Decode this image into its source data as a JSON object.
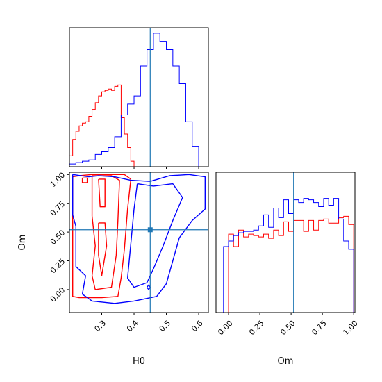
{
  "chart_data": {
    "type": "corner",
    "parameters": [
      "H0",
      "Om"
    ],
    "truths": {
      "H0": 0.45,
      "Om": 0.52
    },
    "colors": {
      "series_a": "#ff0000",
      "series_b": "#0000ff",
      "truth": "#1f77b4"
    },
    "panels": [
      {
        "id": "hist_H0",
        "type": "histogram_step",
        "xlim": [
          0.2,
          0.63
        ],
        "series": [
          {
            "color": "#ff0000",
            "bin_edges": [
              0.2,
              0.21,
              0.22,
              0.23,
              0.24,
              0.25,
              0.26,
              0.27,
              0.28,
              0.29,
              0.3,
              0.31,
              0.32,
              0.33,
              0.34,
              0.35,
              0.36,
              0.37,
              0.38,
              0.39,
              0.4
            ],
            "counts": [
              0.08,
              0.2,
              0.26,
              0.3,
              0.32,
              0.33,
              0.37,
              0.42,
              0.47,
              0.52,
              0.55,
              0.56,
              0.57,
              0.56,
              0.59,
              0.6,
              0.36,
              0.24,
              0.14,
              0.04
            ]
          },
          {
            "color": "#0000ff",
            "bin_edges": [
              0.2,
              0.22,
              0.24,
              0.26,
              0.28,
              0.3,
              0.32,
              0.34,
              0.36,
              0.38,
              0.4,
              0.42,
              0.44,
              0.46,
              0.48,
              0.5,
              0.52,
              0.54,
              0.56,
              0.58,
              0.6
            ],
            "counts": [
              0.02,
              0.03,
              0.04,
              0.05,
              0.09,
              0.11,
              0.14,
              0.22,
              0.38,
              0.46,
              0.52,
              0.74,
              0.86,
              0.98,
              0.92,
              0.86,
              0.74,
              0.61,
              0.33,
              0.15
            ]
          }
        ]
      },
      {
        "id": "hist_Om",
        "type": "histogram_step",
        "xlim": [
          -0.1,
          1.01
        ],
        "xticks": [
          "0.00",
          "0.25",
          "0.50",
          "0.75",
          "1.00"
        ],
        "xlabel": "Om",
        "series": [
          {
            "color": "#ff0000",
            "bin_edges": [
              0,
              0.04,
              0.08,
              0.12,
              0.16,
              0.2,
              0.24,
              0.28,
              0.32,
              0.36,
              0.4,
              0.44,
              0.48,
              0.52,
              0.56,
              0.6,
              0.64,
              0.68,
              0.72,
              0.76,
              0.8,
              0.84,
              0.88,
              0.92,
              0.96,
              1.0
            ],
            "counts": [
              0.57,
              0.48,
              0.6,
              0.55,
              0.57,
              0.56,
              0.55,
              0.57,
              0.54,
              0.6,
              0.56,
              0.66,
              0.59,
              0.67,
              0.67,
              0.59,
              0.67,
              0.6,
              0.67,
              0.68,
              0.65,
              0.65,
              0.69,
              0.7,
              0.64
            ]
          },
          {
            "color": "#0000ff",
            "bin_edges": [
              -0.08,
              -0.04,
              0,
              0.04,
              0.08,
              0.12,
              0.16,
              0.2,
              0.24,
              0.28,
              0.32,
              0.36,
              0.4,
              0.44,
              0.48,
              0.52,
              0.56,
              0.6,
              0.64,
              0.68,
              0.72,
              0.76,
              0.8,
              0.84,
              0.88,
              0.92,
              0.96,
              1.0
            ],
            "counts": [
              0,
              0.48,
              0.52,
              0.56,
              0.58,
              0.59,
              0.59,
              0.6,
              0.63,
              0.71,
              0.62,
              0.76,
              0.69,
              0.82,
              0.72,
              0.82,
              0.8,
              0.83,
              0.82,
              0.8,
              0.77,
              0.83,
              0.78,
              0.83,
              0.68,
              0.52,
              0.46
            ]
          }
        ]
      },
      {
        "id": "contour_H0_Om",
        "type": "contour",
        "xlim": [
          0.2,
          0.63
        ],
        "ylim": [
          -0.2,
          1.02
        ],
        "xticks": [
          "0.3",
          "0.4",
          "0.5",
          "0.6"
        ],
        "yticks": [
          "0.00",
          "0.25",
          "0.50",
          "0.75",
          "1.00"
        ],
        "xlabel": "H0",
        "ylabel": "Om",
        "series": [
          {
            "color": "#ff0000",
            "contours": [
              [
                [
                  0.21,
                  0.98
                ],
                [
                  0.23,
                  0.99
                ],
                [
                  0.27,
                  1.0
                ],
                [
                  0.33,
                  1.0
                ],
                [
                  0.37,
                  1.0
                ],
                [
                  0.39,
                  0.96
                ],
                [
                  0.38,
                  0.7
                ],
                [
                  0.37,
                  0.35
                ],
                [
                  0.36,
                  0.1
                ],
                [
                  0.35,
                  -0.06
                ],
                [
                  0.3,
                  -0.07
                ],
                [
                  0.23,
                  -0.07
                ],
                [
                  0.21,
                  -0.06
                ],
                [
                  0.21,
                  0.25
                ],
                [
                  0.21,
                  0.6
                ],
                [
                  0.21,
                  0.98
                ]
              ],
              [
                [
                  0.27,
                  0.99
                ],
                [
                  0.33,
                  0.99
                ],
                [
                  0.355,
                  0.95
                ],
                [
                  0.35,
                  0.6
                ],
                [
                  0.345,
                  0.3
                ],
                [
                  0.33,
                  0.02
                ],
                [
                  0.28,
                  0.0
                ],
                [
                  0.27,
                  0.12
                ],
                [
                  0.28,
                  0.38
                ],
                [
                  0.27,
                  0.64
                ],
                [
                  0.27,
                  0.99
                ]
              ],
              [
                [
                  0.29,
                  0.96
                ],
                [
                  0.31,
                  0.96
                ],
                [
                  0.31,
                  0.72
                ],
                [
                  0.295,
                  0.72
                ],
                [
                  0.29,
                  0.96
                ]
              ],
              [
                [
                  0.29,
                  0.58
                ],
                [
                  0.31,
                  0.58
                ],
                [
                  0.315,
                  0.38
                ],
                [
                  0.3,
                  0.12
                ],
                [
                  0.29,
                  0.3
                ],
                [
                  0.29,
                  0.58
                ]
              ],
              [
                [
                  0.24,
                  0.97
                ],
                [
                  0.255,
                  0.97
                ],
                [
                  0.255,
                  0.93
                ],
                [
                  0.24,
                  0.93
                ],
                [
                  0.24,
                  0.97
                ]
              ]
            ]
          },
          {
            "color": "#0000ff",
            "contours": [
              [
                [
                  0.21,
                  1.0
                ],
                [
                  0.26,
                  0.98
                ],
                [
                  0.29,
                  0.99
                ],
                [
                  0.34,
                  0.98
                ],
                [
                  0.39,
                  0.95
                ],
                [
                  0.45,
                  0.94
                ],
                [
                  0.51,
                  0.99
                ],
                [
                  0.57,
                  1.0
                ],
                [
                  0.62,
                  0.98
                ],
                [
                  0.62,
                  0.7
                ],
                [
                  0.58,
                  0.6
                ],
                [
                  0.54,
                  0.45
                ],
                [
                  0.52,
                  0.25
                ],
                [
                  0.5,
                  0.05
                ],
                [
                  0.47,
                  -0.06
                ],
                [
                  0.4,
                  -0.1
                ],
                [
                  0.34,
                  -0.12
                ],
                [
                  0.27,
                  -0.1
                ],
                [
                  0.24,
                  -0.04
                ],
                [
                  0.25,
                  0.12
                ],
                [
                  0.22,
                  0.2
                ],
                [
                  0.22,
                  0.55
                ],
                [
                  0.21,
                  0.65
                ],
                [
                  0.21,
                  1.0
                ]
              ],
              [
                [
                  0.41,
                  0.92
                ],
                [
                  0.46,
                  0.9
                ],
                [
                  0.52,
                  0.92
                ],
                [
                  0.55,
                  0.8
                ],
                [
                  0.52,
                  0.6
                ],
                [
                  0.49,
                  0.38
                ],
                [
                  0.46,
                  0.18
                ],
                [
                  0.44,
                  0.06
                ],
                [
                  0.4,
                  0.02
                ],
                [
                  0.38,
                  0.1
                ],
                [
                  0.39,
                  0.4
                ],
                [
                  0.4,
                  0.7
                ],
                [
                  0.41,
                  0.92
                ]
              ],
              [
                [
                  0.44,
                  0.02
                ],
                [
                  0.445,
                  0.0
                ],
                [
                  0.45,
                  0.02
                ],
                [
                  0.445,
                  0.04
                ],
                [
                  0.44,
                  0.02
                ]
              ]
            ]
          }
        ]
      }
    ]
  }
}
